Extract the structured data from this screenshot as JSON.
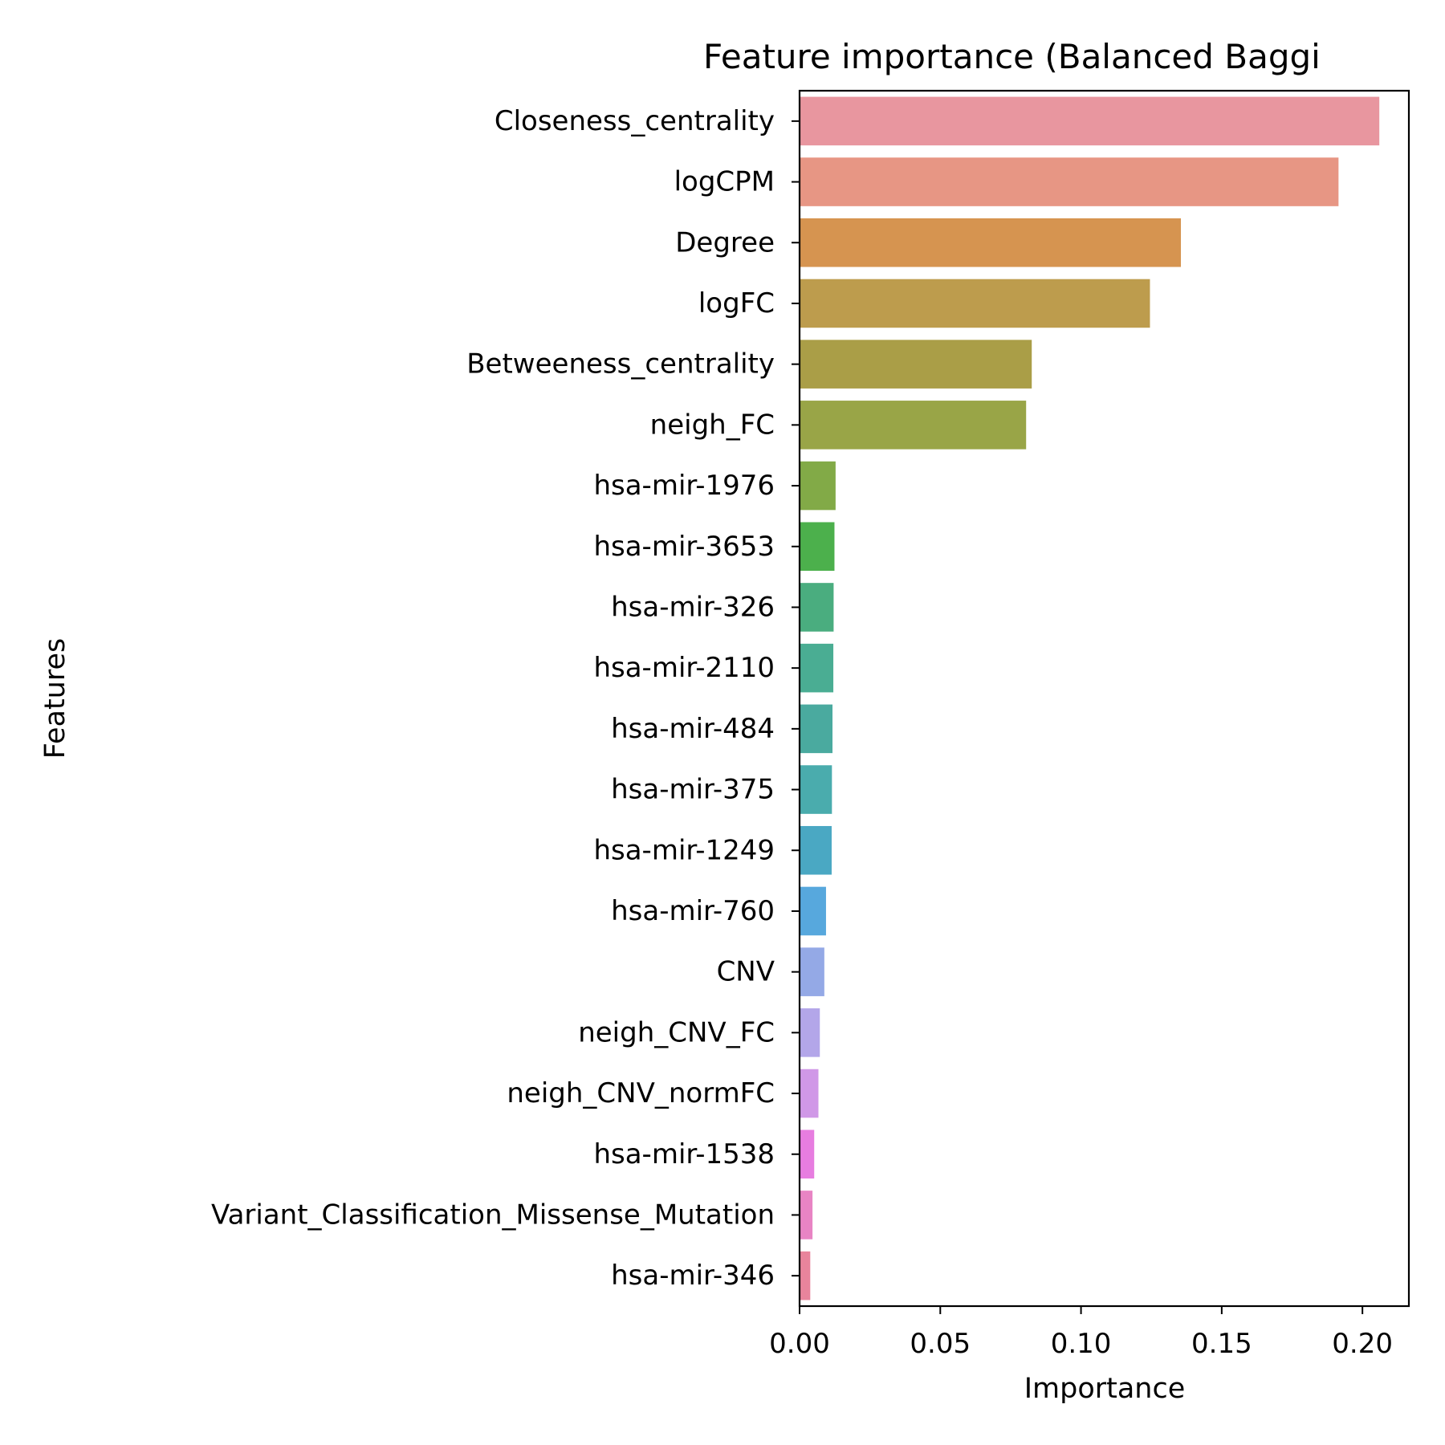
{
  "chart_data": {
    "type": "bar",
    "orientation": "horizontal",
    "title": "Feature importance (Balanced Baggi",
    "xlabel": "Importance",
    "ylabel": "Features",
    "xlim": [
      0,
      0.2165
    ],
    "xticks": [
      0.0,
      0.05,
      0.1,
      0.15,
      0.2
    ],
    "xtick_labels": [
      "0.00",
      "0.05",
      "0.10",
      "0.15",
      "0.20"
    ],
    "grid": false,
    "legend": "none",
    "categories": [
      "Closeness_centrality",
      "logCPM",
      "Degree",
      "logFC",
      "Betweeness_centrality",
      "neigh_FC",
      "hsa-mir-1976",
      "hsa-mir-3653",
      "hsa-mir-326",
      "hsa-mir-2110",
      "hsa-mir-484",
      "hsa-mir-375",
      "hsa-mir-1249",
      "hsa-mir-760",
      "CNV",
      "neigh_CNV_FC",
      "neigh_CNV_normFC",
      "hsa-mir-1538",
      "Variant_Classification_Missense_Mutation",
      "hsa-mir-346"
    ],
    "values": [
      0.206,
      0.1915,
      0.1355,
      0.1245,
      0.0825,
      0.0805,
      0.0128,
      0.0124,
      0.0121,
      0.012,
      0.0117,
      0.0115,
      0.0114,
      0.0094,
      0.0088,
      0.0072,
      0.0067,
      0.0052,
      0.0046,
      0.0038
    ],
    "colors": [
      "#e8969f",
      "#e79684",
      "#d69450",
      "#bd9c4d",
      "#aa9e47",
      "#99a547",
      "#82aa47",
      "#4cb04c",
      "#4aad7f",
      "#4aad93",
      "#4aaa9f",
      "#4aacad",
      "#4aa8c3",
      "#57a8dd",
      "#94a9e6",
      "#b3a6e9",
      "#d098e7",
      "#e77de0",
      "#e884c4",
      "#e8849c"
    ]
  }
}
